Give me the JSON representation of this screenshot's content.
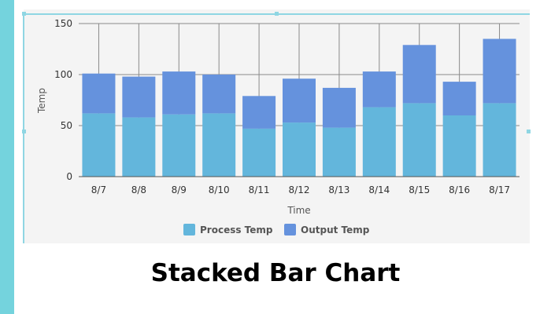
{
  "caption": "Stacked Bar Chart",
  "colors": {
    "process": "#63b6dc",
    "output": "#6592dd",
    "strip": "#74d3dd"
  },
  "chart_data": {
    "type": "bar",
    "stacked": true,
    "categories": [
      "8/7",
      "8/8",
      "8/9",
      "8/10",
      "8/11",
      "8/12",
      "8/13",
      "8/14",
      "8/15",
      "8/16",
      "8/17"
    ],
    "series": [
      {
        "name": "Process Temp",
        "values": [
          62,
          58,
          61,
          62,
          47,
          53,
          48,
          68,
          72,
          60,
          72
        ]
      },
      {
        "name": "Output Temp",
        "values": [
          39,
          40,
          42,
          38,
          32,
          43,
          39,
          35,
          57,
          33,
          63
        ]
      }
    ],
    "xlabel": "Time",
    "ylabel": "Temp",
    "ylim": [
      0,
      150
    ],
    "yticks": [
      0,
      50,
      100,
      150
    ],
    "grid": true,
    "legend_position": "bottom-center"
  }
}
